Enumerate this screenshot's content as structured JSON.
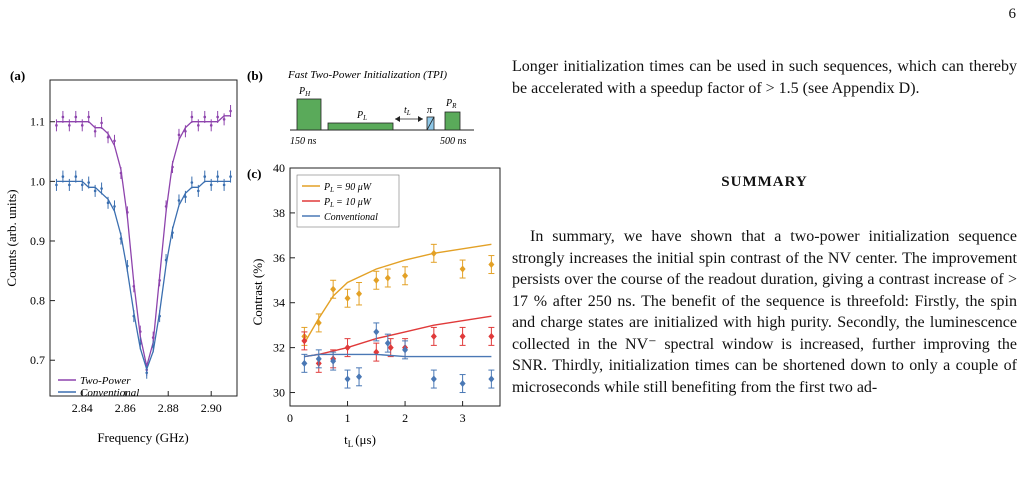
{
  "page_number": "6",
  "colors": {
    "purple": "#8e44ad",
    "blue": "#3b6fb0",
    "orange": "#e3a126",
    "red": "#e03a3a",
    "steel": "#4a78b5",
    "green": "#5aaa5a"
  },
  "figure": {
    "panel_a_label": "(a)",
    "panel_b_label": "(b)",
    "panel_c_label": "(c)",
    "panel_b": {
      "title": "Fast Two-Power Initialization (TPI)",
      "ph_label": "P",
      "ph_sub": "H",
      "pl_label": "P",
      "pl_sub": "L",
      "tl_label": "t",
      "tl_sub": "L",
      "pi_label": "π",
      "pr_label": "P",
      "pr_sub": "R",
      "duration_left": "150 ns",
      "duration_right": "500 ns"
    }
  },
  "chart_data": [
    {
      "type": "line",
      "panel": "(a)",
      "xlabel": "Frequency (GHz)",
      "ylabel": "Counts (arb. units)",
      "xlim": [
        2.825,
        2.912
      ],
      "ylim": [
        0.64,
        1.17
      ],
      "xticks": [
        "2.84",
        "2.86",
        "2.88",
        "2.90"
      ],
      "yticks": [
        "0.7",
        "0.8",
        "0.9",
        "1.0",
        "1.1"
      ],
      "legend": "bottom-left",
      "series": [
        {
          "name": "Two-Power",
          "color": "#8e44ad",
          "x": [
            2.828,
            2.831,
            2.834,
            2.837,
            2.84,
            2.843,
            2.846,
            2.849,
            2.852,
            2.855,
            2.858,
            2.861,
            2.864,
            2.867,
            2.87,
            2.873,
            2.876,
            2.879,
            2.882,
            2.885,
            2.888,
            2.891,
            2.894,
            2.897,
            2.9,
            2.903,
            2.906,
            2.909
          ],
          "y": [
            1.1,
            1.1,
            1.1,
            1.1,
            1.1,
            1.1,
            1.09,
            1.09,
            1.08,
            1.06,
            1.02,
            0.94,
            0.83,
            0.74,
            0.69,
            0.73,
            0.84,
            0.95,
            1.03,
            1.07,
            1.09,
            1.1,
            1.1,
            1.1,
            1.1,
            1.1,
            1.11,
            1.11
          ]
        },
        {
          "name": "Conventional",
          "color": "#3b6fb0",
          "x": [
            2.828,
            2.831,
            2.834,
            2.837,
            2.84,
            2.843,
            2.846,
            2.849,
            2.852,
            2.855,
            2.858,
            2.861,
            2.864,
            2.867,
            2.87,
            2.873,
            2.876,
            2.879,
            2.882,
            2.885,
            2.888,
            2.891,
            2.894,
            2.897,
            2.9,
            2.903,
            2.906,
            2.909
          ],
          "y": [
            1.0,
            1.0,
            1.0,
            1.0,
            1.0,
            0.99,
            0.99,
            0.98,
            0.97,
            0.95,
            0.91,
            0.85,
            0.78,
            0.72,
            0.685,
            0.715,
            0.78,
            0.86,
            0.92,
            0.96,
            0.98,
            0.99,
            0.99,
            1.0,
            1.0,
            1.0,
            1.0,
            1.0
          ]
        }
      ]
    },
    {
      "type": "scatter",
      "panel": "(c)",
      "xlabel": "t",
      "xlabel_sub": "L",
      "xlabel_unit": "(μs)",
      "ylabel": "Contrast (%)",
      "xlim": [
        0,
        3.65
      ],
      "ylim": [
        29.4,
        40
      ],
      "xticks": [
        "0",
        "1",
        "2",
        "3"
      ],
      "yticks": [
        "30",
        "32",
        "34",
        "36",
        "38",
        "40"
      ],
      "legend": "top-left",
      "series": [
        {
          "name": "= 90 μW",
          "legend_prefix": "P",
          "legend_sub": "L",
          "color": "#e3a126",
          "x": [
            0.25,
            0.5,
            0.75,
            1.0,
            1.2,
            1.5,
            1.7,
            2.0,
            2.5,
            3.0,
            3.5
          ],
          "y": [
            32.5,
            33.1,
            34.6,
            34.2,
            34.4,
            35.0,
            35.1,
            35.2,
            36.2,
            35.5,
            35.7
          ],
          "err": [
            0.4,
            0.4,
            0.4,
            0.4,
            0.5,
            0.4,
            0.4,
            0.4,
            0.4,
            0.4,
            0.4
          ],
          "fit_x": [
            0.25,
            0.5,
            0.75,
            1.0,
            1.5,
            2.0,
            2.5,
            3.0,
            3.5
          ],
          "fit_y": [
            32.2,
            33.3,
            34.3,
            34.9,
            35.5,
            35.9,
            36.2,
            36.4,
            36.6
          ]
        },
        {
          "name": "= 10 μW",
          "legend_prefix": "P",
          "legend_sub": "L",
          "color": "#e03a3a",
          "x": [
            0.25,
            0.5,
            0.75,
            1.0,
            1.5,
            1.75,
            2.0,
            2.5,
            3.0,
            3.5
          ],
          "y": [
            32.3,
            31.3,
            31.5,
            32.0,
            31.8,
            32.0,
            32.0,
            32.5,
            32.5,
            32.5
          ],
          "err": [
            0.4,
            0.4,
            0.4,
            0.4,
            0.4,
            0.4,
            0.4,
            0.4,
            0.4,
            0.4
          ],
          "fit_x": [
            0.25,
            0.5,
            1.0,
            1.5,
            2.0,
            2.5,
            3.0,
            3.5
          ],
          "fit_y": [
            31.6,
            31.7,
            32.0,
            32.4,
            32.7,
            33.0,
            33.2,
            33.4
          ]
        },
        {
          "name": "Conventional",
          "color": "#4a78b5",
          "x": [
            0.25,
            0.5,
            0.75,
            1.0,
            1.2,
            1.5,
            1.7,
            2.0,
            2.5,
            3.0,
            3.5
          ],
          "y": [
            31.3,
            31.5,
            31.4,
            30.6,
            30.7,
            32.7,
            32.2,
            31.9,
            30.6,
            30.4,
            30.6
          ],
          "err": [
            0.4,
            0.4,
            0.4,
            0.4,
            0.4,
            0.4,
            0.4,
            0.4,
            0.4,
            0.4,
            0.4
          ],
          "fit_x": [
            0.25,
            0.5,
            1.0,
            1.5,
            2.0,
            2.5,
            3.0,
            3.5
          ],
          "fit_y": [
            31.6,
            31.7,
            31.7,
            31.7,
            31.6,
            31.6,
            31.6,
            31.6
          ]
        }
      ]
    }
  ],
  "text": {
    "para1": "Longer initialization times can be used in such sequences, which can thereby be accelerated with a speedup factor of > 1.5 (see Appendix D).",
    "summary_heading": "SUMMARY",
    "para2": "In summary, we have shown that a two-power initialization sequence strongly increases the initial spin contrast of the NV center. The improvement persists over the course of the readout duration, giving a contrast increase of > 17 % after 250 ns. The benefit of the sequence is threefold: Firstly, the spin and charge states are initialized with high purity. Secondly, the luminescence collected in the NV⁻ spectral window is increased, further improving the SNR. Thirdly, initialization times can be shortened down to only a couple of microseconds while still benefiting from the first two ad-"
  }
}
